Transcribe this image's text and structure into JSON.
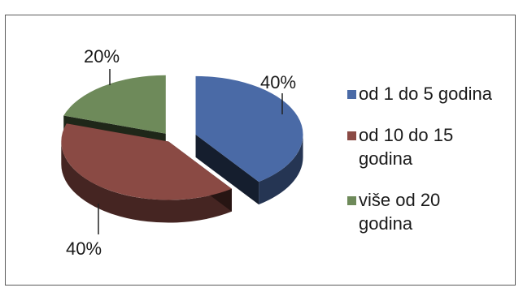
{
  "chart_data": {
    "type": "pie",
    "three_d": true,
    "categories": [
      "od 1 do 5 godina",
      "od 10 do 15 godina",
      "više od 20 godina"
    ],
    "values": [
      40,
      40,
      20
    ],
    "data_labels": [
      "40%",
      "40%",
      "20%"
    ],
    "colors": [
      "#4a6aa6",
      "#8a4a44",
      "#6e8a5a"
    ],
    "legend": "right",
    "title": ""
  },
  "legend": {
    "items": [
      {
        "line1": "od 1 do 5 godina",
        "line2": ""
      },
      {
        "line1": "od 10 do 15",
        "line2": "godina"
      },
      {
        "line1": "više od 20",
        "line2": "godina"
      }
    ]
  }
}
